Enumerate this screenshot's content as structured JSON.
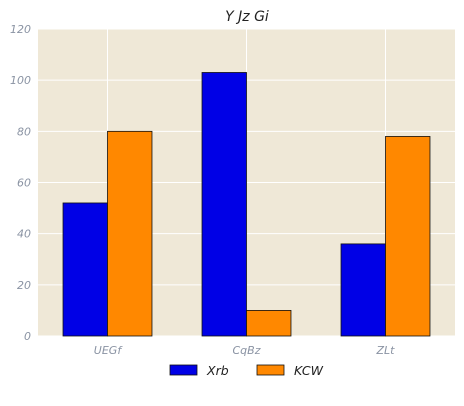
{
  "chart_data": {
    "type": "bar",
    "title": "Y Jz Gi",
    "xlabel": "",
    "ylabel": "",
    "categories": [
      "UEGf",
      "CqBz",
      "ZLt"
    ],
    "series": [
      {
        "name": "Xrb",
        "values": [
          52,
          103,
          36
        ],
        "color": "#0000e6"
      },
      {
        "name": "KCW",
        "values": [
          80,
          10,
          78
        ],
        "color": "#ff8800"
      }
    ],
    "ylim": [
      0,
      120
    ],
    "yticks": [
      0,
      20,
      40,
      60,
      80,
      100,
      120
    ],
    "grid": true,
    "legend_position": "bottom-center",
    "background_color": "#efe8d7",
    "grid_color": "#ffffff"
  }
}
